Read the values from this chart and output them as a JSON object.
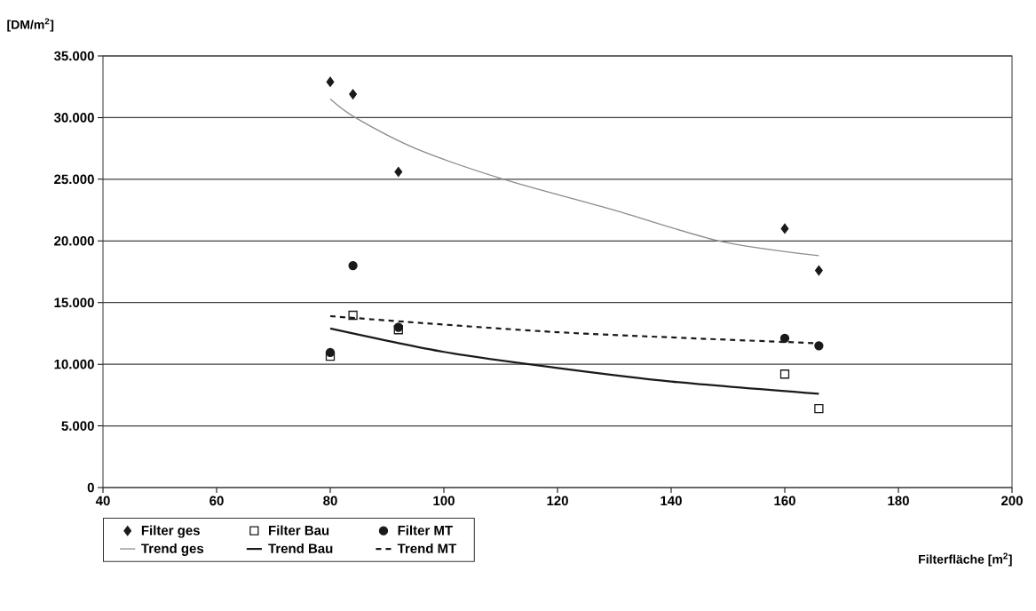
{
  "chart_data": {
    "type": "scatter",
    "ylabel": "[DM/m$^{2}$]",
    "xlabel": "Filterfläche [m$^{2}$]",
    "xlim": [
      40,
      200
    ],
    "xticks": [
      40,
      60,
      80,
      100,
      120,
      140,
      160,
      180,
      200
    ],
    "ylim": [
      0,
      35000
    ],
    "yticks": [
      {
        "value": 0,
        "label": "0"
      },
      {
        "value": 5000,
        "label": "5.000"
      },
      {
        "value": 10000,
        "label": "10.000"
      },
      {
        "value": 15000,
        "label": "15.000"
      },
      {
        "value": 20000,
        "label": "20.000"
      },
      {
        "value": 25000,
        "label": "25.000"
      },
      {
        "value": 30000,
        "label": "30.000"
      },
      {
        "value": 35000,
        "label": "35.000"
      }
    ],
    "grid": "y",
    "legend": "bottom",
    "series": [
      {
        "name": "Filter ges",
        "marker": "diamond",
        "color": "#1a1a1a",
        "x": [
          80,
          84,
          92,
          160,
          166
        ],
        "values": [
          32900,
          31900,
          25600,
          21000,
          17600
        ]
      },
      {
        "name": "Filter Bau",
        "marker": "square",
        "color": "#1a1a1a",
        "x": [
          80,
          84,
          92,
          160,
          166
        ],
        "values": [
          10650,
          13970,
          12800,
          9200,
          6400
        ]
      },
      {
        "name": "Filter MT",
        "marker": "circle",
        "color": "#1a1a1a",
        "x": [
          80,
          84,
          92,
          160,
          166
        ],
        "values": [
          10950,
          18000,
          13000,
          12100,
          11500
        ]
      },
      {
        "name": "Trend ges",
        "type": "line",
        "marker": "none",
        "line_style": "solid",
        "color": "#8c8c8c",
        "x": [
          80,
          84.4,
          95,
          110.5,
          130,
          148.4,
          166
        ],
        "values": [
          31500,
          30000,
          27500,
          25000,
          22500,
          20000,
          18800
        ]
      },
      {
        "name": "Trend Bau",
        "type": "line",
        "marker": "none",
        "line_style": "solid",
        "color": "#1a1a1a",
        "x": [
          80,
          100,
          120,
          140,
          166
        ],
        "values": [
          12900,
          11000,
          9700,
          8600,
          7600
        ]
      },
      {
        "name": "Trend MT",
        "type": "line",
        "marker": "none",
        "line_style": "dashed",
        "color": "#1a1a1a",
        "x": [
          80,
          120,
          166
        ],
        "values": [
          13900,
          12600,
          11700
        ]
      }
    ]
  }
}
